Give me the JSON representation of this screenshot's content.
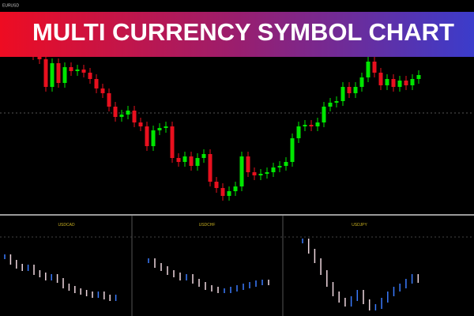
{
  "header": {
    "title": "MULTI CURRENCY SYMBOL CHART"
  },
  "chart_data": [
    {
      "type": "candlestick",
      "symbol": "EURUSD",
      "ylim": [
        0,
        272
      ],
      "up_color": "#00e600",
      "down_color": "#e8101e",
      "open": [
        207,
        202,
        197,
        162,
        192,
        167,
        187,
        182,
        184,
        180,
        172,
        160,
        154,
        137,
        124,
        127,
        132,
        117,
        112,
        87,
        107,
        110,
        112,
        72,
        67,
        74,
        62,
        72,
        77,
        42,
        34,
        24,
        30,
        36,
        74,
        54,
        50,
        52,
        54,
        60,
        62,
        67,
        97,
        112,
        114,
        112,
        117,
        137,
        142,
        144,
        162,
        154,
        162,
        174,
        194,
        180,
        164,
        172,
        162,
        170,
        164,
        172
      ],
      "close": [
        202,
        197,
        162,
        192,
        167,
        187,
        182,
        184,
        180,
        172,
        160,
        154,
        137,
        124,
        127,
        132,
        117,
        112,
        87,
        107,
        110,
        112,
        72,
        67,
        74,
        62,
        72,
        77,
        42,
        34,
        24,
        30,
        36,
        74,
        54,
        50,
        52,
        54,
        60,
        62,
        67,
        97,
        112,
        114,
        112,
        117,
        137,
        142,
        144,
        162,
        154,
        162,
        174,
        194,
        180,
        164,
        172,
        162,
        170,
        164,
        172,
        177
      ],
      "high": [
        213,
        208,
        203,
        198,
        198,
        193,
        193,
        190,
        190,
        186,
        178,
        166,
        160,
        143,
        133,
        138,
        138,
        123,
        118,
        113,
        116,
        118,
        118,
        78,
        80,
        80,
        78,
        83,
        83,
        48,
        40,
        36,
        42,
        80,
        80,
        60,
        58,
        60,
        66,
        68,
        73,
        103,
        118,
        120,
        120,
        123,
        143,
        148,
        150,
        168,
        168,
        168,
        180,
        200,
        200,
        186,
        178,
        178,
        176,
        176,
        178,
        183
      ],
      "low": [
        196,
        191,
        156,
        156,
        161,
        161,
        176,
        176,
        174,
        166,
        154,
        148,
        131,
        118,
        118,
        121,
        111,
        106,
        81,
        81,
        101,
        104,
        66,
        61,
        61,
        56,
        56,
        66,
        36,
        28,
        18,
        18,
        24,
        30,
        48,
        44,
        44,
        46,
        48,
        54,
        56,
        61,
        91,
        106,
        106,
        106,
        111,
        131,
        136,
        138,
        148,
        148,
        156,
        168,
        174,
        158,
        158,
        156,
        156,
        158,
        158,
        166
      ]
    },
    {
      "type": "sticks",
      "symbol": "USDCAD",
      "ylim": [
        0,
        125
      ],
      "up_color": "#3a7bff",
      "down_color": "#f0d8e0",
      "values": [
        75,
        68,
        63,
        60,
        62,
        55,
        52,
        48,
        50,
        45,
        38,
        35,
        32,
        30,
        28,
        26,
        28,
        24,
        22,
        24
      ]
    },
    {
      "type": "sticks",
      "symbol": "USDCHF",
      "ylim": [
        0,
        125
      ],
      "up_color": "#3a7bff",
      "down_color": "#f0d8e0",
      "values": [
        70,
        64,
        60,
        55,
        52,
        48,
        50,
        44,
        40,
        36,
        34,
        32,
        32,
        34,
        36,
        38,
        40,
        42,
        43,
        42
      ]
    },
    {
      "type": "sticks",
      "symbol": "USDJPY",
      "ylim": [
        0,
        125
      ],
      "up_color": "#3a7bff",
      "down_color": "#f0d8e0",
      "values": [
        95,
        82,
        70,
        55,
        40,
        28,
        20,
        15,
        22,
        30,
        18,
        10,
        12,
        20,
        28,
        34,
        38,
        44,
        50,
        45
      ]
    }
  ]
}
